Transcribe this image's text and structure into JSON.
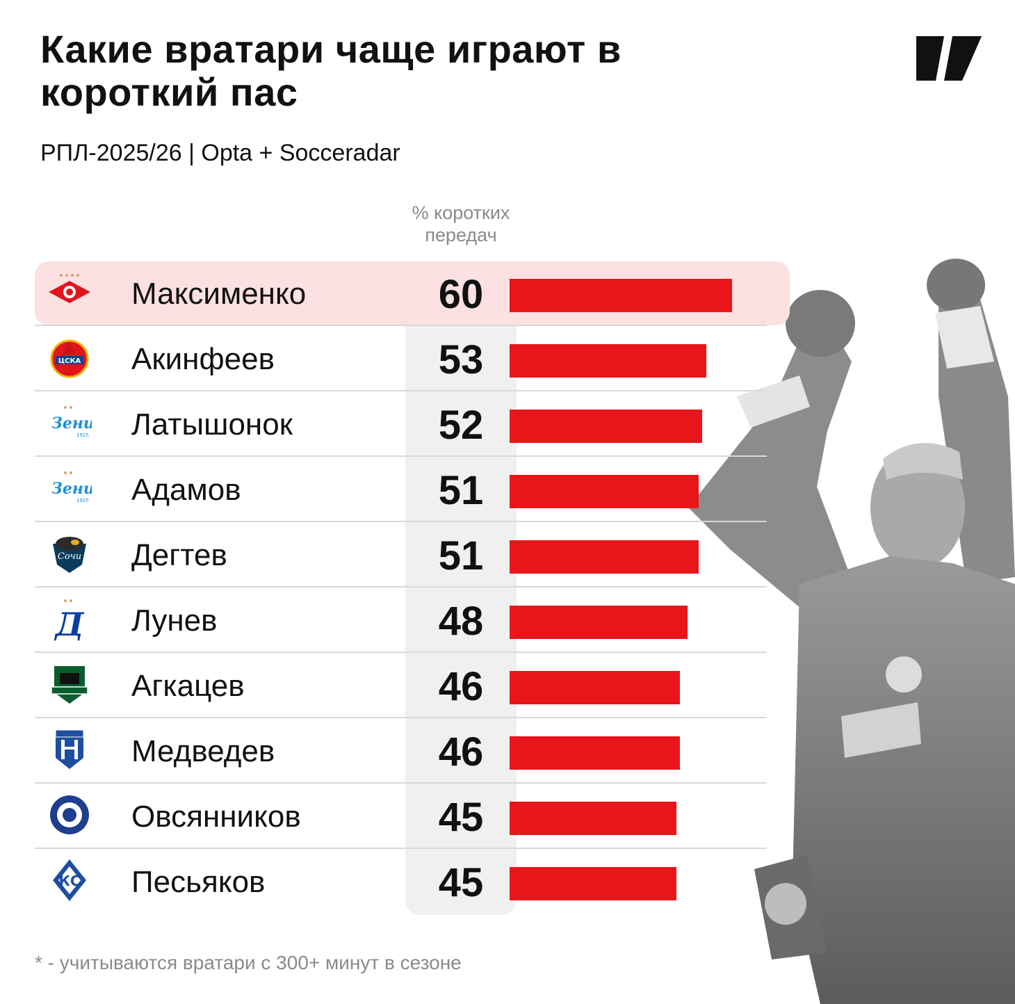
{
  "header": {
    "title": "Какие вратари чаще играют в короткий пас",
    "subtitle": "РПЛ-2025/26 | Opta + Socceradar"
  },
  "column_header": "% коротких передач",
  "footnote": "* - учитываются вратари с 300+ минут в сезоне",
  "colors": {
    "bar": "#e8161b",
    "highlight_row": "#fde0e2",
    "value_column": "#f0f0f0"
  },
  "chart_data": {
    "type": "bar",
    "orientation": "horizontal",
    "categories": [
      "Максименко",
      "Акинфеев",
      "Латышонок",
      "Адамов",
      "Дегтев",
      "Лунев",
      "Агкацев",
      "Медведев",
      "Овсянников",
      "Песьяков"
    ],
    "values": [
      60,
      53,
      52,
      51,
      51,
      48,
      46,
      46,
      45,
      45
    ],
    "club_icons": [
      "spartak-icon",
      "cska-icon",
      "zenit-icon",
      "zenit-icon",
      "sochi-icon",
      "dynamo-icon",
      "krasnodar-icon",
      "pari-nn-icon",
      "orenburg-icon",
      "krylia-icon"
    ],
    "highlighted_index": 0,
    "xlim": [
      0,
      60
    ],
    "grid": false,
    "legend": "none"
  }
}
